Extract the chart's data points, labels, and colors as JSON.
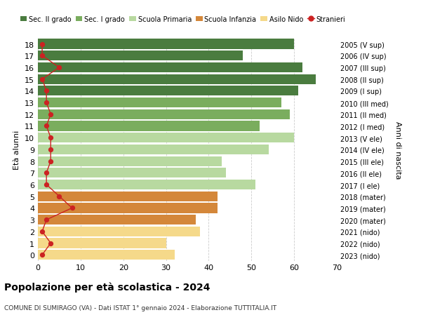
{
  "ages": [
    18,
    17,
    16,
    15,
    14,
    13,
    12,
    11,
    10,
    9,
    8,
    7,
    6,
    5,
    4,
    3,
    2,
    1,
    0
  ],
  "years": [
    "2005 (V sup)",
    "2006 (IV sup)",
    "2007 (III sup)",
    "2008 (II sup)",
    "2009 (I sup)",
    "2010 (III med)",
    "2011 (II med)",
    "2012 (I med)",
    "2013 (V ele)",
    "2014 (IV ele)",
    "2015 (III ele)",
    "2016 (II ele)",
    "2017 (I ele)",
    "2018 (mater)",
    "2019 (mater)",
    "2020 (mater)",
    "2021 (nido)",
    "2022 (nido)",
    "2023 (nido)"
  ],
  "bar_values": [
    60,
    48,
    62,
    65,
    61,
    57,
    59,
    52,
    60,
    54,
    43,
    44,
    51,
    42,
    42,
    37,
    38,
    30,
    32
  ],
  "bar_colors": [
    "#4a7c3f",
    "#4a7c3f",
    "#4a7c3f",
    "#4a7c3f",
    "#4a7c3f",
    "#7aad5e",
    "#7aad5e",
    "#7aad5e",
    "#b8d9a0",
    "#b8d9a0",
    "#b8d9a0",
    "#b8d9a0",
    "#b8d9a0",
    "#d4873a",
    "#d4873a",
    "#d4873a",
    "#f5d98a",
    "#f5d98a",
    "#f5d98a"
  ],
  "stranieri_values": [
    1,
    1,
    5,
    1,
    2,
    2,
    3,
    2,
    3,
    3,
    3,
    2,
    2,
    5,
    8,
    2,
    1,
    3,
    1
  ],
  "legend_labels": [
    "Sec. II grado",
    "Sec. I grado",
    "Scuola Primaria",
    "Scuola Infanzia",
    "Asilo Nido",
    "Stranieri"
  ],
  "legend_colors": [
    "#4a7c3f",
    "#7aad5e",
    "#b8d9a0",
    "#d4873a",
    "#f5d98a",
    "#cc2222"
  ],
  "title": "Popolazione per età scolastica - 2024",
  "subtitle": "COMUNE DI SUMIRAGO (VA) - Dati ISTAT 1° gennaio 2024 - Elaborazione TUTTITALIA.IT",
  "ylabel_left": "Età alunni",
  "ylabel_right": "Anni di nascita",
  "xlim": [
    0,
    70
  ],
  "xticks": [
    0,
    10,
    20,
    30,
    40,
    50,
    60,
    70
  ],
  "background_color": "#ffffff",
  "grid_color": "#cccccc"
}
